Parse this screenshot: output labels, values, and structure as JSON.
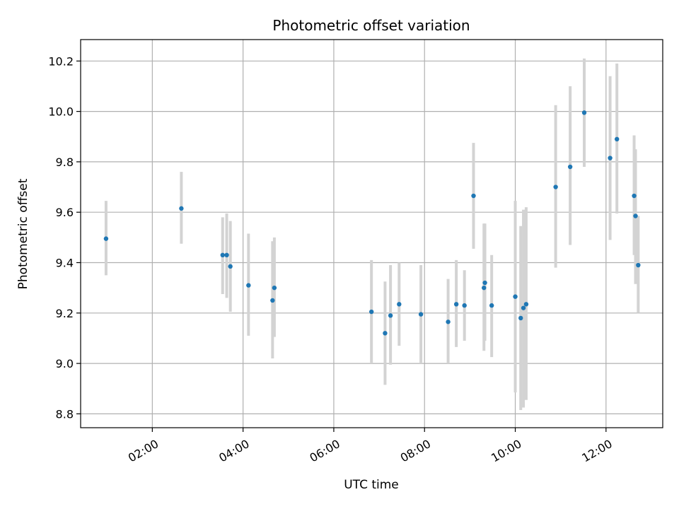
{
  "chart_data": {
    "type": "scatter",
    "title": "Photometric offset variation",
    "xlabel": "UTC time",
    "ylabel": "Photometric offset",
    "x_unit": "hours UTC",
    "xlim": [
      0.42,
      13.25
    ],
    "ylim": [
      8.745,
      10.285
    ],
    "grid": true,
    "x_ticks": [
      {
        "value": 2,
        "label": "02:00"
      },
      {
        "value": 4,
        "label": "04:00"
      },
      {
        "value": 6,
        "label": "06:00"
      },
      {
        "value": 8,
        "label": "08:00"
      },
      {
        "value": 10,
        "label": "10:00"
      },
      {
        "value": 12,
        "label": "12:00"
      }
    ],
    "y_ticks": [
      {
        "value": 8.8,
        "label": "8.8"
      },
      {
        "value": 9.0,
        "label": "9.0"
      },
      {
        "value": 9.2,
        "label": "9.2"
      },
      {
        "value": 9.4,
        "label": "9.4"
      },
      {
        "value": 9.6,
        "label": "9.6"
      },
      {
        "value": 9.8,
        "label": "9.8"
      },
      {
        "value": 10.0,
        "label": "10.0"
      },
      {
        "value": 10.2,
        "label": "10.2"
      }
    ],
    "marker_color": "#1f77b4",
    "errorbar_color": "#d3d3d3",
    "points": [
      {
        "x": 0.98,
        "y": 9.495,
        "ylo": 9.35,
        "yhi": 9.645
      },
      {
        "x": 2.64,
        "y": 9.615,
        "ylo": 9.475,
        "yhi": 9.76
      },
      {
        "x": 3.55,
        "y": 9.43,
        "ylo": 9.275,
        "yhi": 9.58
      },
      {
        "x": 3.64,
        "y": 9.43,
        "ylo": 9.26,
        "yhi": 9.595
      },
      {
        "x": 3.72,
        "y": 9.385,
        "ylo": 9.205,
        "yhi": 9.565
      },
      {
        "x": 4.12,
        "y": 9.31,
        "ylo": 9.11,
        "yhi": 9.515
      },
      {
        "x": 4.65,
        "y": 9.25,
        "ylo": 9.02,
        "yhi": 9.485
      },
      {
        "x": 4.69,
        "y": 9.3,
        "ylo": 9.105,
        "yhi": 9.5
      },
      {
        "x": 6.83,
        "y": 9.205,
        "ylo": 9.0,
        "yhi": 9.41
      },
      {
        "x": 7.13,
        "y": 9.12,
        "ylo": 8.915,
        "yhi": 9.325
      },
      {
        "x": 7.25,
        "y": 9.19,
        "ylo": 8.995,
        "yhi": 9.39
      },
      {
        "x": 7.44,
        "y": 9.235,
        "ylo": 9.07,
        "yhi": 9.4
      },
      {
        "x": 7.92,
        "y": 9.195,
        "ylo": 9.0,
        "yhi": 9.39
      },
      {
        "x": 8.52,
        "y": 9.165,
        "ylo": 9.0,
        "yhi": 9.335
      },
      {
        "x": 8.7,
        "y": 9.235,
        "ylo": 9.065,
        "yhi": 9.41
      },
      {
        "x": 8.88,
        "y": 9.23,
        "ylo": 9.09,
        "yhi": 9.37
      },
      {
        "x": 9.08,
        "y": 9.665,
        "ylo": 9.455,
        "yhi": 9.875
      },
      {
        "x": 9.31,
        "y": 9.3,
        "ylo": 9.05,
        "yhi": 9.555
      },
      {
        "x": 9.33,
        "y": 9.32,
        "ylo": 9.09,
        "yhi": 9.555
      },
      {
        "x": 9.48,
        "y": 9.23,
        "ylo": 9.025,
        "yhi": 9.43
      },
      {
        "x": 10.0,
        "y": 9.265,
        "ylo": 8.885,
        "yhi": 9.645
      },
      {
        "x": 10.12,
        "y": 9.18,
        "ylo": 8.815,
        "yhi": 9.545
      },
      {
        "x": 10.18,
        "y": 9.22,
        "ylo": 8.825,
        "yhi": 9.61
      },
      {
        "x": 10.24,
        "y": 9.235,
        "ylo": 8.855,
        "yhi": 9.62
      },
      {
        "x": 10.89,
        "y": 9.7,
        "ylo": 9.38,
        "yhi": 10.025
      },
      {
        "x": 11.21,
        "y": 9.78,
        "ylo": 9.47,
        "yhi": 10.1
      },
      {
        "x": 11.52,
        "y": 9.995,
        "ylo": 9.78,
        "yhi": 10.21
      },
      {
        "x": 12.09,
        "y": 9.815,
        "ylo": 9.49,
        "yhi": 10.14
      },
      {
        "x": 12.24,
        "y": 9.89,
        "ylo": 9.595,
        "yhi": 10.19
      },
      {
        "x": 12.62,
        "y": 9.665,
        "ylo": 9.43,
        "yhi": 9.905
      },
      {
        "x": 12.65,
        "y": 9.585,
        "ylo": 9.315,
        "yhi": 9.85
      },
      {
        "x": 12.71,
        "y": 9.39,
        "ylo": 9.2,
        "yhi": 9.585
      }
    ]
  }
}
